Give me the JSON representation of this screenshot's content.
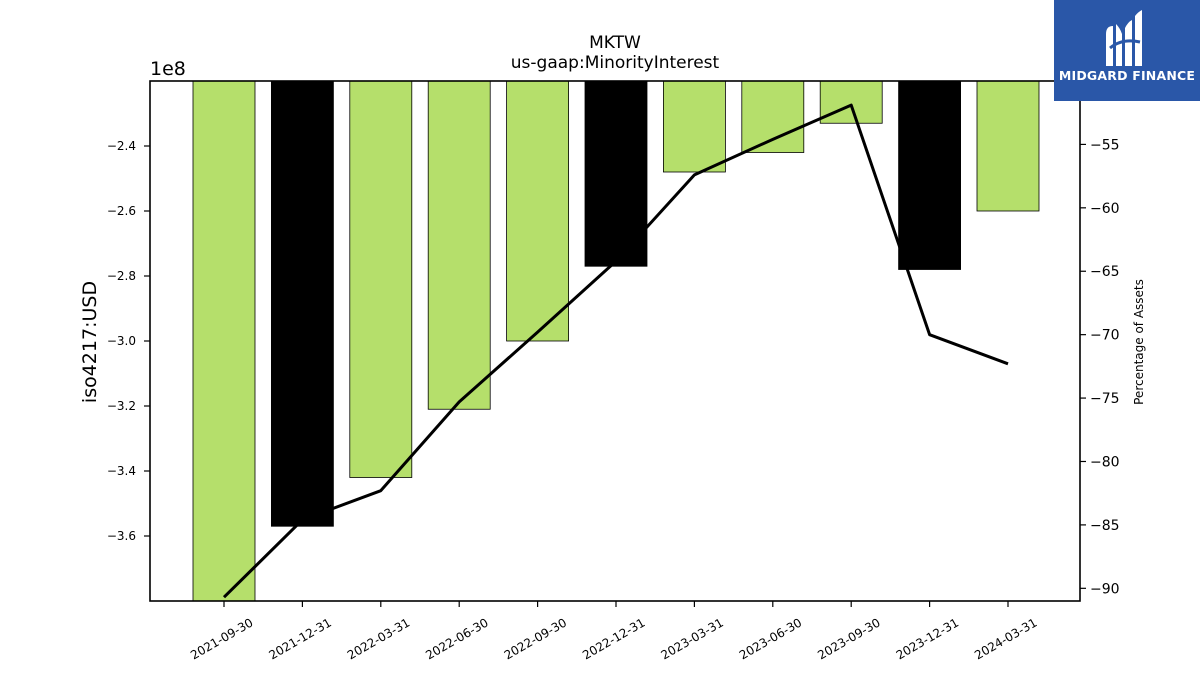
{
  "chart_data": {
    "type": "bar",
    "title": "MKTW",
    "subtitle": "us-gaap:MinorityInterest",
    "categories": [
      "2021-09-30",
      "2021-12-31",
      "2022-03-31",
      "2022-06-30",
      "2022-09-30",
      "2022-12-31",
      "2023-03-31",
      "2023-06-30",
      "2023-09-30",
      "2023-12-31",
      "2024-03-31"
    ],
    "series": [
      {
        "values": [
          -380000000,
          -357000000,
          -342000000,
          -321000000,
          -300000000,
          -277000000,
          -248000000,
          -242000000,
          -233000000,
          -278000000,
          -260000000
        ],
        "axis": "left",
        "colors": [
          "#b5df6b",
          "#000000",
          "#b5df6b",
          "#b5df6b",
          "#b5df6b",
          "#000000",
          "#b5df6b",
          "#b5df6b",
          "#b5df6b",
          "#000000",
          "#b5df6b"
        ]
      },
      {
        "type": "line",
        "values": [
          -90.7,
          -84.6,
          -82.3,
          -75.3,
          -69.8,
          -64.2,
          -57.4,
          -54.6,
          -51.9,
          -70.0,
          -72.3
        ],
        "axis": "right",
        "color": "#000000"
      }
    ],
    "ylabel": "iso4217:USD",
    "ylabel_right": "Percentage of Assets",
    "y_offset_label": "1e8",
    "ylim": [
      -3.8,
      -2.2
    ],
    "ylim_right": [
      -91,
      -50
    ],
    "yticks": [
      -3.6,
      -3.4,
      -3.2,
      -3.0,
      -2.8,
      -2.6,
      -2.4
    ],
    "yticklabels": [
      "−3.6",
      "−3.4",
      "−3.2",
      "−3.0",
      "−2.8",
      "−2.6",
      "−2.4"
    ],
    "yticks_right": [
      -90,
      -85,
      -80,
      -75,
      -70,
      -65,
      -60,
      -55
    ],
    "yticklabels_right": [
      "−90",
      "−85",
      "−80",
      "−75",
      "−70",
      "−65",
      "−60",
      "−55"
    ],
    "grid": false
  },
  "logo": {
    "text": "MIDGARD FINANCE"
  }
}
